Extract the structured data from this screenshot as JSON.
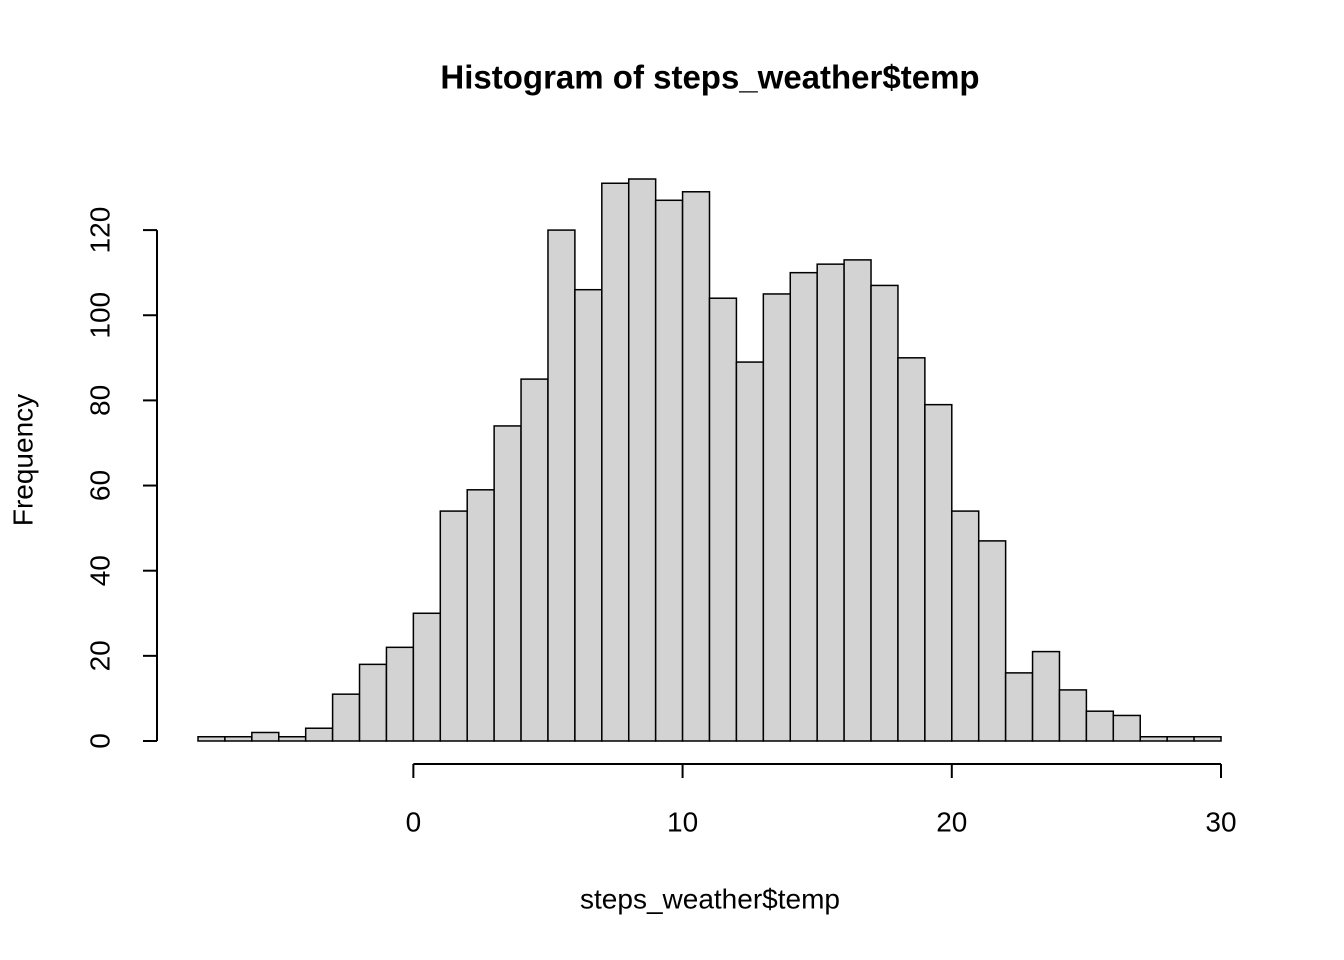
{
  "chart_data": {
    "type": "histogram",
    "title": "Histogram of steps_weather$temp",
    "x_label": "steps_weather$temp",
    "y_label": "Frequency",
    "bins": [
      -8,
      -7,
      -6,
      -5,
      -4,
      -3,
      -2,
      -1,
      0,
      1,
      2,
      3,
      4,
      5,
      6,
      7,
      8,
      9,
      10,
      11,
      12,
      13,
      14,
      15,
      16,
      17,
      18,
      19,
      20,
      21,
      22,
      23,
      24,
      25,
      26,
      27,
      28,
      29,
      30
    ],
    "counts": [
      1,
      1,
      2,
      1,
      3,
      11,
      18,
      22,
      30,
      54,
      59,
      74,
      85,
      120,
      106,
      131,
      132,
      127,
      129,
      104,
      89,
      105,
      110,
      112,
      113,
      107,
      90,
      79,
      54,
      47,
      16,
      21,
      12,
      7,
      6,
      1,
      1,
      1
    ],
    "color": "#d3d3d3",
    "xlim": [
      -8,
      30
    ],
    "xticks": [
      0,
      10,
      20,
      30
    ],
    "ylim": [
      0,
      132
    ],
    "yticks": [
      0,
      20,
      40,
      60,
      80,
      100,
      120
    ]
  }
}
